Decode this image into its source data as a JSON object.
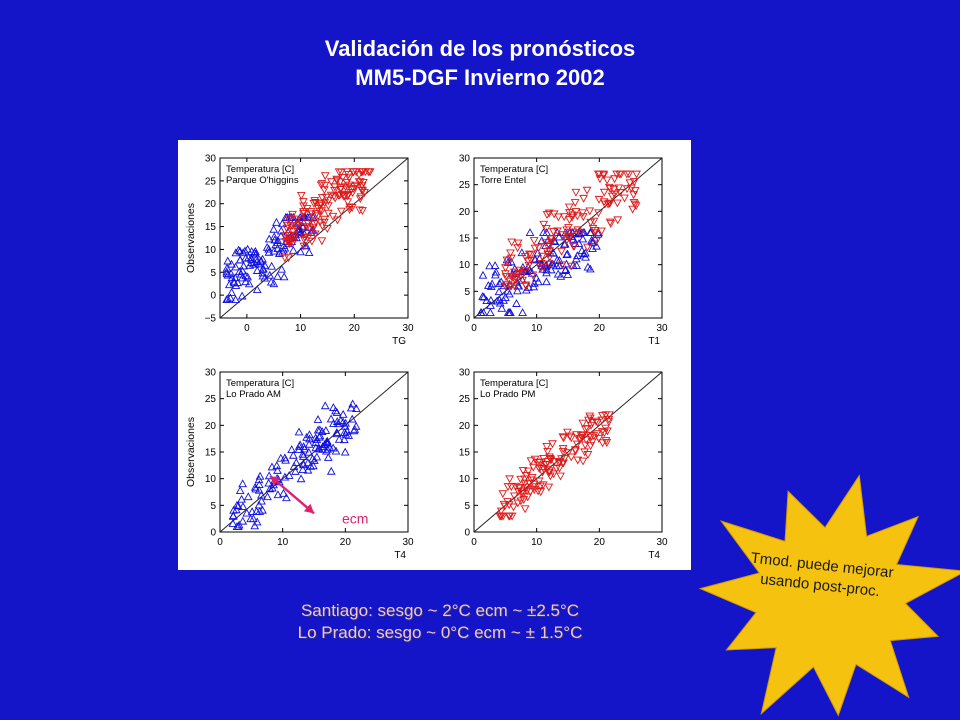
{
  "title": {
    "line1": "Validación de los pronósticos",
    "line2": "MM5-DGF Invierno 2002"
  },
  "colors": {
    "background": "#1414c8",
    "observed_warm": "#e01818",
    "observed_cold": "#1010e0",
    "annotation_arrow": "#e0206e",
    "starburst": "#f4c20f"
  },
  "chart_data": [
    {
      "type": "scatter",
      "panel": "top-left",
      "legend": [
        "Temperatura [C]",
        "Parque O'higgins"
      ],
      "xlabel": "TG",
      "ylabel": "Observaciones",
      "xlim": [
        -5,
        30
      ],
      "ylim": [
        -5,
        30
      ],
      "xticks": [
        0,
        10,
        20,
        30
      ],
      "yticks": [
        -5,
        0,
        5,
        10,
        15,
        20,
        25,
        30
      ],
      "identity_line": true,
      "series": [
        {
          "marker": "triangle-up",
          "color": "#1010e0",
          "x_range": [
            -4,
            13
          ],
          "y_range": [
            -1,
            17
          ],
          "slope": 0.9,
          "intercept": 5.5,
          "spread": 3.0
        },
        {
          "marker": "triangle-down",
          "color": "#e01818",
          "x_range": [
            7,
            23
          ],
          "y_range": [
            8,
            27
          ],
          "slope": 0.95,
          "intercept": 5.5,
          "spread": 3.0
        }
      ]
    },
    {
      "type": "scatter",
      "panel": "top-right",
      "legend": [
        "Temperatura [C]",
        "Torre Entel"
      ],
      "xlabel": "T1",
      "ylabel": "",
      "xlim": [
        0,
        30
      ],
      "ylim": [
        0,
        30
      ],
      "xticks": [
        0,
        10,
        20,
        30
      ],
      "yticks": [
        0,
        5,
        10,
        15,
        20,
        25,
        30
      ],
      "identity_line": true,
      "series": [
        {
          "marker": "triangle-up",
          "color": "#1010e0",
          "x_range": [
            1,
            20
          ],
          "y_range": [
            1,
            16
          ],
          "slope": 0.75,
          "intercept": 2.0,
          "spread": 3.0
        },
        {
          "marker": "triangle-down",
          "color": "#e01818",
          "x_range": [
            5,
            26
          ],
          "y_range": [
            6,
            27
          ],
          "slope": 0.95,
          "intercept": 2.0,
          "spread": 3.2
        }
      ]
    },
    {
      "type": "scatter",
      "panel": "bottom-left",
      "legend": [
        "Temperatura [C]",
        "Lo Prado AM"
      ],
      "xlabel": "T4",
      "ylabel": "Observaciones",
      "xlim": [
        0,
        30
      ],
      "ylim": [
        0,
        30
      ],
      "xticks": [
        0,
        10,
        20,
        30
      ],
      "yticks": [
        0,
        5,
        10,
        15,
        20,
        25,
        30
      ],
      "identity_line": true,
      "annotation": "ecm",
      "series": [
        {
          "marker": "triangle-up",
          "color": "#1010e0",
          "x_range": [
            2,
            22
          ],
          "y_range": [
            1,
            24
          ],
          "slope": 1.0,
          "intercept": 0.5,
          "spread": 2.5
        }
      ]
    },
    {
      "type": "scatter",
      "panel": "bottom-right",
      "legend": [
        "Temperatura [C]",
        "Lo Prado PM"
      ],
      "xlabel": "T4",
      "ylabel": "",
      "xlim": [
        0,
        30
      ],
      "ylim": [
        0,
        30
      ],
      "xticks": [
        0,
        10,
        20,
        30
      ],
      "yticks": [
        0,
        5,
        10,
        15,
        20,
        25,
        30
      ],
      "identity_line": true,
      "series": [
        {
          "marker": "triangle-down",
          "color": "#e01818",
          "x_range": [
            4,
            22
          ],
          "y_range": [
            3,
            22
          ],
          "slope": 1.0,
          "intercept": 0.0,
          "spread": 2.2
        }
      ]
    }
  ],
  "summary": {
    "line1": "Santiago: sesgo ~ 2°C  ecm ~ ±2.5°C",
    "line2": "Lo Prado: sesgo ~ 0°C  ecm ~ ± 1.5°C"
  },
  "callout": {
    "line1": "Tmod. puede mejorar",
    "line2": "usando post-proc."
  }
}
